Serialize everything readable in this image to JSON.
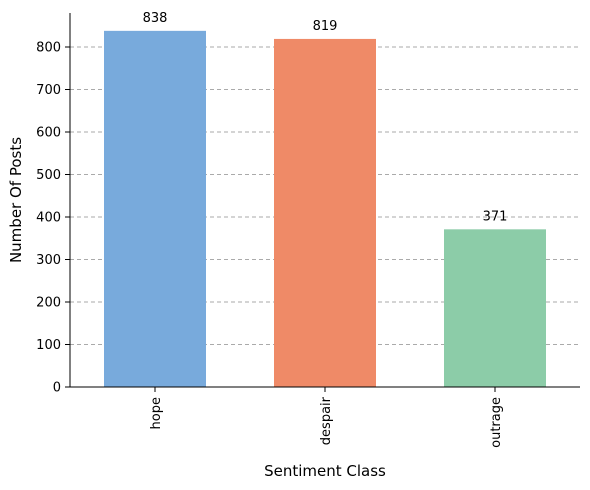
{
  "chart_data": {
    "type": "bar",
    "categories": [
      "hope",
      "despair",
      "outrage"
    ],
    "values": [
      838,
      819,
      371
    ],
    "colors": [
      "#78aadc",
      "#ef8a67",
      "#8ccca8"
    ],
    "title": "",
    "xlabel": "Sentiment Class",
    "ylabel": "Number Of Posts",
    "ylim": [
      0,
      880
    ],
    "yticks": [
      0,
      100,
      200,
      300,
      400,
      500,
      600,
      700,
      800
    ],
    "grid": "y-axis dashed",
    "legend": "none"
  }
}
